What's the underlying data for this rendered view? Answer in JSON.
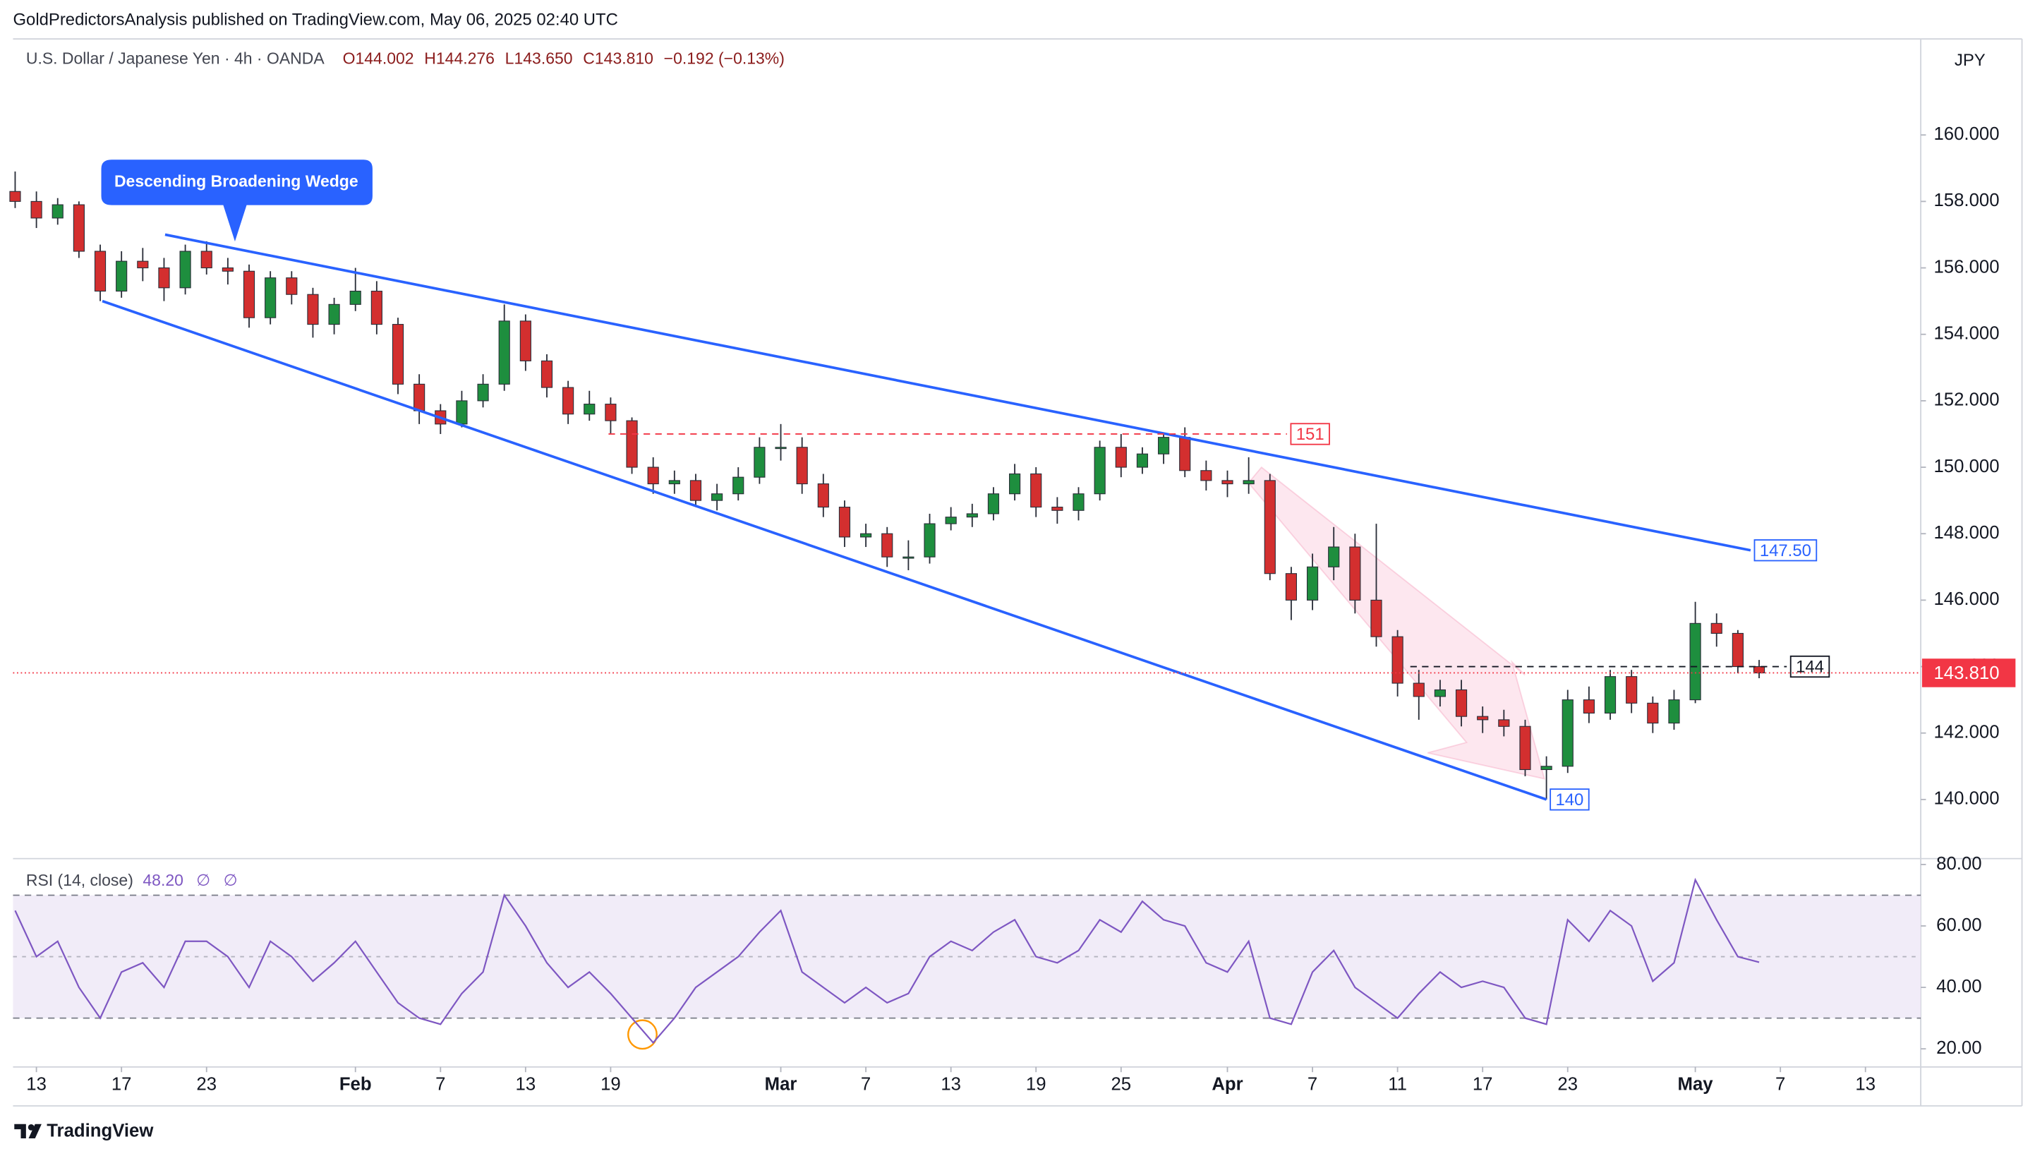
{
  "header": "GoldPredictorsAnalysis published on TradingView.com, May 06, 2025 02:40 UTC",
  "footer": "TradingView",
  "chart_data": [
    {
      "type": "candlestick",
      "title": "U.S. Dollar / Japanese Yen · 4h · OANDA",
      "ohlc_legend": [
        "O144.002",
        "H144.276",
        "L143.650",
        "C143.810",
        "−0.192 (−0.13%)"
      ],
      "currency": "JPY",
      "callout": "Descending Broadening Wedge",
      "up_color": "#1e8e3e",
      "down_color": "#d32f2f",
      "wick_color": "#2a2e39",
      "xlim": [
        -0.1,
        89.6
      ],
      "ylim": [
        138.24,
        162.89
      ],
      "yticks": [
        {
          "value": 140,
          "label": "140.000"
        },
        {
          "value": 142,
          "label": "142.000"
        },
        {
          "value": 144,
          "label": "144.000"
        },
        {
          "value": 146,
          "label": "146.000"
        },
        {
          "value": 148,
          "label": "148.000"
        },
        {
          "value": 150,
          "label": "150.000"
        },
        {
          "value": 152,
          "label": "152.000"
        },
        {
          "value": 154,
          "label": "154.000"
        },
        {
          "value": 156,
          "label": "156.000"
        },
        {
          "value": 158,
          "label": "158.000"
        },
        {
          "value": 160,
          "label": "160.000"
        }
      ],
      "open": [
        158.3,
        158.0,
        157.5,
        157.9,
        156.5,
        155.3,
        156.2,
        156.0,
        155.4,
        156.5,
        156.0,
        155.9,
        154.5,
        155.7,
        155.2,
        154.3,
        154.9,
        155.3,
        154.3,
        152.5,
        151.7,
        151.3,
        152.0,
        152.5,
        154.4,
        153.2,
        152.4,
        151.6,
        151.9,
        151.4,
        150.0,
        149.5,
        149.6,
        149.0,
        149.2,
        149.7,
        150.6,
        150.6,
        149.5,
        148.8,
        147.9,
        148.0,
        147.3,
        147.3,
        148.3,
        148.5,
        148.6,
        149.2,
        149.8,
        148.8,
        148.7,
        149.2,
        150.6,
        150.0,
        150.4,
        150.9,
        149.9,
        149.6,
        149.5,
        149.6,
        146.8,
        146.0,
        147.0,
        147.6,
        146.0,
        144.9,
        143.5,
        143.1,
        143.3,
        142.5,
        142.4,
        142.2,
        140.9,
        141.0,
        143.0,
        142.6,
        143.7,
        142.9,
        142.3,
        143.0,
        145.3,
        145.0,
        144.0
      ],
      "high": [
        158.9,
        158.3,
        158.1,
        158.0,
        156.7,
        156.5,
        156.6,
        156.3,
        156.7,
        156.8,
        156.3,
        156.1,
        155.9,
        155.9,
        155.4,
        155.1,
        156.0,
        155.6,
        154.5,
        152.8,
        151.9,
        152.3,
        152.8,
        154.9,
        154.6,
        153.4,
        152.6,
        152.3,
        152.1,
        151.5,
        150.3,
        149.9,
        149.8,
        149.5,
        150.0,
        150.9,
        151.3,
        150.9,
        149.8,
        149.0,
        148.3,
        148.2,
        147.8,
        148.6,
        148.8,
        148.9,
        149.4,
        150.1,
        150.0,
        149.1,
        149.4,
        150.8,
        151.0,
        150.6,
        151.0,
        151.2,
        150.2,
        149.9,
        150.3,
        149.8,
        147.0,
        147.4,
        148.2,
        148.0,
        148.3,
        145.1,
        143.9,
        143.6,
        143.6,
        142.8,
        142.7,
        142.4,
        141.3,
        143.3,
        143.4,
        143.9,
        143.9,
        143.1,
        143.3,
        145.95,
        145.6,
        145.1,
        144.2
      ],
      "low": [
        157.8,
        157.2,
        157.3,
        156.3,
        155.0,
        155.1,
        155.6,
        155.0,
        155.2,
        155.8,
        155.5,
        154.2,
        154.3,
        154.9,
        153.9,
        154.0,
        154.7,
        154.0,
        152.2,
        151.3,
        151.0,
        151.2,
        151.8,
        152.3,
        152.9,
        152.1,
        151.3,
        151.4,
        151.0,
        149.8,
        149.2,
        149.2,
        148.8,
        148.7,
        149.0,
        149.5,
        150.2,
        149.2,
        148.5,
        147.6,
        147.6,
        147.0,
        146.9,
        147.1,
        148.1,
        148.2,
        148.4,
        149.0,
        148.5,
        148.3,
        148.4,
        149.0,
        149.7,
        149.8,
        150.1,
        149.7,
        149.3,
        149.1,
        149.2,
        146.6,
        145.4,
        145.7,
        146.6,
        145.6,
        144.6,
        143.1,
        142.4,
        142.8,
        142.2,
        142.0,
        141.9,
        140.7,
        140.0,
        140.8,
        142.3,
        142.4,
        142.6,
        142.0,
        142.1,
        142.9,
        144.6,
        143.8,
        143.65
      ],
      "close": [
        158.0,
        157.5,
        157.9,
        156.5,
        155.3,
        156.2,
        156.0,
        155.4,
        156.5,
        156.0,
        155.9,
        154.5,
        155.7,
        155.2,
        154.3,
        154.9,
        155.3,
        154.3,
        152.5,
        151.7,
        151.3,
        152.0,
        152.5,
        154.4,
        153.2,
        152.4,
        151.6,
        151.9,
        151.4,
        150.0,
        149.5,
        149.6,
        149.0,
        149.2,
        149.7,
        150.6,
        150.6,
        149.5,
        148.8,
        147.9,
        148.0,
        147.3,
        147.3,
        148.3,
        148.5,
        148.6,
        149.2,
        149.8,
        148.8,
        148.7,
        149.2,
        150.6,
        150.0,
        150.4,
        150.9,
        149.9,
        149.6,
        149.5,
        149.6,
        146.8,
        146.0,
        147.0,
        147.6,
        146.0,
        144.9,
        143.5,
        143.1,
        143.3,
        142.5,
        142.4,
        142.2,
        140.9,
        141.0,
        143.0,
        142.6,
        143.7,
        142.9,
        142.3,
        143.0,
        145.3,
        145.0,
        144.0,
        143.81
      ],
      "last_price": {
        "value": 143.81,
        "label": "143.810",
        "color": "#f23645"
      },
      "annotations": [
        {
          "label": "147.50",
          "color": "#2962ff",
          "dashed": false,
          "x": [
            7.05,
            81.6
          ],
          "y": [
            157.0,
            147.5
          ]
        },
        {
          "label": "140",
          "color": "#2962ff",
          "dashed": false,
          "x": [
            4.1,
            72.0
          ],
          "y": [
            155.0,
            140
          ]
        },
        {
          "label": "151",
          "color": "#f23645",
          "dashed": true,
          "x": [
            27.9,
            59.8
          ],
          "y": [
            151,
            151
          ]
        },
        {
          "label": "144",
          "color": "#131722",
          "dashed": true,
          "x": [
            65.6,
            83.3
          ],
          "y": [
            144,
            144
          ]
        }
      ]
    },
    {
      "type": "line",
      "title": "RSI (14, close)",
      "legend": [
        "48.20",
        "∅",
        "∅"
      ],
      "color": "#7e57c2",
      "band_color": "#ede7f6",
      "levels": [
        70,
        50,
        30
      ],
      "xlim": [
        -0.1,
        89.6
      ],
      "ylim": [
        14.1,
        81.7
      ],
      "yticks": [
        {
          "value": 20,
          "label": "20.00"
        },
        {
          "value": 40,
          "label": "40.00"
        },
        {
          "value": 60,
          "label": "60.00"
        },
        {
          "value": 80,
          "label": "80.00"
        }
      ],
      "xticks": [
        {
          "value": 1,
          "label": "13"
        },
        {
          "value": 5,
          "label": "17"
        },
        {
          "value": 9,
          "label": "23"
        },
        {
          "value": 16,
          "label": "Feb"
        },
        {
          "value": 20,
          "label": "7"
        },
        {
          "value": 24,
          "label": "13"
        },
        {
          "value": 28,
          "label": "19"
        },
        {
          "value": 36,
          "label": "Mar"
        },
        {
          "value": 40,
          "label": "7"
        },
        {
          "value": 44,
          "label": "13"
        },
        {
          "value": 48,
          "label": "19"
        },
        {
          "value": 52,
          "label": "25"
        },
        {
          "value": 57,
          "label": "Apr"
        },
        {
          "value": 61,
          "label": "7"
        },
        {
          "value": 65,
          "label": "11"
        },
        {
          "value": 69,
          "label": "17"
        },
        {
          "value": 73,
          "label": "23"
        },
        {
          "value": 79,
          "label": "May"
        },
        {
          "value": 83,
          "label": "7"
        },
        {
          "value": 87,
          "label": "13"
        }
      ],
      "values": [
        65,
        50,
        55,
        40,
        30,
        45,
        48,
        40,
        55,
        55,
        50,
        40,
        55,
        50,
        42,
        48,
        55,
        45,
        35,
        30,
        28,
        38,
        45,
        70,
        60,
        48,
        40,
        45,
        38,
        30,
        22,
        30,
        40,
        45,
        50,
        58,
        65,
        45,
        40,
        35,
        40,
        35,
        38,
        50,
        55,
        52,
        58,
        62,
        50,
        48,
        52,
        62,
        58,
        68,
        62,
        60,
        48,
        45,
        55,
        30,
        28,
        45,
        52,
        40,
        35,
        30,
        38,
        45,
        40,
        42,
        40,
        30,
        28,
        62,
        55,
        65,
        60,
        42,
        48,
        75,
        62,
        50,
        48.2
      ]
    }
  ]
}
